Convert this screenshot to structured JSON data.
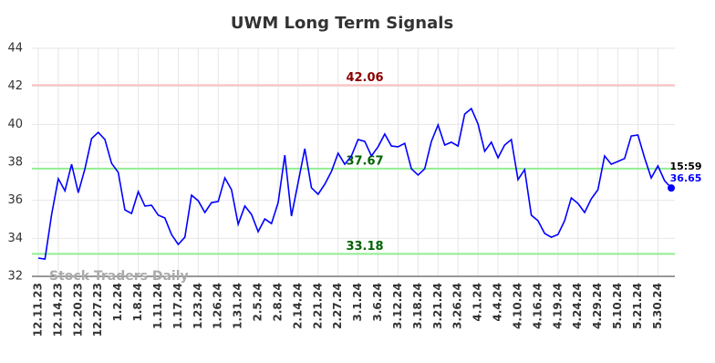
{
  "chart_data": {
    "type": "line",
    "title": "UWM Long Term Signals",
    "categories": [
      "12.11.23",
      null,
      null,
      "12.14.23",
      null,
      null,
      "12.20.23",
      null,
      null,
      "12.27.23",
      null,
      null,
      "1.2.24",
      null,
      null,
      "1.8.24",
      null,
      null,
      "1.11.24",
      null,
      null,
      "1.17.24",
      null,
      null,
      "1.23.24",
      null,
      null,
      "1.26.24",
      null,
      null,
      "1.31.24",
      null,
      null,
      "2.5.24",
      null,
      null,
      "2.8.24",
      null,
      null,
      "2.14.24",
      null,
      null,
      "2.21.24",
      null,
      null,
      "2.27.24",
      null,
      null,
      "3.1.24",
      null,
      null,
      "3.6.24",
      null,
      null,
      "3.12.24",
      null,
      null,
      "3.18.24",
      null,
      null,
      "3.21.24",
      null,
      null,
      "3.26.24",
      null,
      null,
      "4.1.24",
      null,
      null,
      "4.4.24",
      null,
      null,
      "4.10.24",
      null,
      null,
      "4.16.24",
      null,
      null,
      "4.19.24",
      null,
      null,
      "4.24.24",
      null,
      null,
      "4.29.24",
      null,
      null,
      "5.10.24",
      null,
      null,
      "5.21.24",
      null,
      null,
      "5.30.24",
      null,
      null
    ],
    "values": [
      32.96,
      32.91,
      35.26,
      37.14,
      36.5,
      37.9,
      36.4,
      37.66,
      39.25,
      39.58,
      39.2,
      37.95,
      37.47,
      35.5,
      35.31,
      36.46,
      35.7,
      35.74,
      35.22,
      35.07,
      34.2,
      33.68,
      34.06,
      36.27,
      35.98,
      35.36,
      35.88,
      35.94,
      37.18,
      36.56,
      34.74,
      35.7,
      35.26,
      34.35,
      35.02,
      34.78,
      35.88,
      38.38,
      35.17,
      36.94,
      38.72,
      36.66,
      36.32,
      36.85,
      37.52,
      38.48,
      37.9,
      38.34,
      39.2,
      39.1,
      38.34,
      38.82,
      39.49,
      38.86,
      38.82,
      39.0,
      37.66,
      37.33,
      37.66,
      39.1,
      39.97,
      38.91,
      39.06,
      38.86,
      40.54,
      40.83,
      40.02,
      38.58,
      39.06,
      38.24,
      38.91,
      39.2,
      37.09,
      37.62,
      35.22,
      34.93,
      34.26,
      34.06,
      34.2,
      34.93,
      36.13,
      35.84,
      35.36,
      36.08,
      36.56,
      38.34,
      37.9,
      38.05,
      38.2,
      39.39,
      39.44,
      38.24,
      37.18,
      37.81,
      37.04,
      36.65
    ],
    "color": "#0000ff",
    "last_time": "15:59",
    "ylim": [
      32,
      44
    ],
    "yticks": [
      32,
      34,
      36,
      38,
      40,
      42,
      44
    ],
    "grid": true,
    "signals": [
      {
        "value": 42.06,
        "color": "#ffc0c0",
        "label_color": "#8b0000"
      },
      {
        "value": 37.67,
        "color": "#90ee90",
        "label_color": "#006400"
      },
      {
        "value": 33.18,
        "color": "#90ee90",
        "label_color": "#006400"
      }
    ],
    "watermark": "Stock Traders Daily"
  }
}
